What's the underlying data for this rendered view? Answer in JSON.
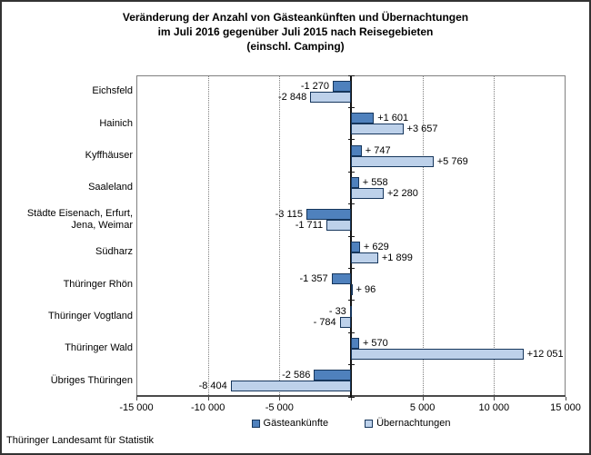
{
  "title": {
    "line1": "Veränderung der Anzahl von Gästeankünften und Übernachtungen",
    "line2": "im Juli 2016 gegenüber Juli 2015 nach Reisegebieten",
    "line3": "(einschl. Camping)"
  },
  "footer": "Thüringer Landesamt für Statistik",
  "legend": [
    {
      "label": "Gästeankünfte",
      "color": "#4f81bd"
    },
    {
      "label": "Übernachtungen",
      "color": "#bdd1ea"
    }
  ],
  "colors": {
    "bar_dark": "#4f81bd",
    "bar_light": "#bdd1ea",
    "bar_border": "#16365c",
    "gridline": "#7f7f7f",
    "plot_border": "#808080",
    "axis_line": "#4a4a4a",
    "zero_axis": "#111111",
    "text": "#000000"
  },
  "chart_data": {
    "type": "bar",
    "orientation": "horizontal",
    "title": "Veränderung der Anzahl von Gästeankünften und Übernachtungen im Juli 2016 gegenüber Juli 2015 nach Reisegebieten (einschl. Camping)",
    "categories": [
      "Eichsfeld",
      "Hainich",
      "Kyffhäuser",
      "Saaleland",
      "Städte Eisenach, Erfurt, Jena, Weimar",
      "Südharz",
      "Thüringer Rhön",
      "Thüringer Vogtland",
      "Thüringer Wald",
      "Übriges Thüringen"
    ],
    "series": [
      {
        "name": "Gästeankünfte",
        "color": "#4f81bd",
        "values": [
          -1270,
          1601,
          747,
          558,
          -3115,
          629,
          -1357,
          -33,
          570,
          -2586
        ],
        "labels": [
          "-1 270",
          "+1 601",
          "+ 747",
          "+ 558",
          "-3 115",
          "+ 629",
          "-1 357",
          "- 33",
          "+ 570",
          "-2 586"
        ]
      },
      {
        "name": "Übernachtungen",
        "color": "#bdd1ea",
        "values": [
          -2848,
          3657,
          5769,
          2280,
          -1711,
          1899,
          96,
          -784,
          12051,
          -8404
        ],
        "labels": [
          "-2 848",
          "+3 657",
          "+5 769",
          "+2 280",
          "-1 711",
          "+1 899",
          "+ 96",
          "- 784",
          "+12 051",
          "-8 404"
        ]
      }
    ],
    "xlim": [
      -15000,
      15000
    ],
    "x_ticks": [
      {
        "value": -15000,
        "label": "-15 000"
      },
      {
        "value": -10000,
        "label": "-10 000"
      },
      {
        "value": -5000,
        "label": "-5 000"
      },
      {
        "value": 0,
        "label": ""
      },
      {
        "value": 5000,
        "label": "5 000"
      },
      {
        "value": 10000,
        "label": "10 000"
      },
      {
        "value": 15000,
        "label": "15 000"
      }
    ],
    "grid": "vertical dotted gridlines at ±5 000 and ±10 000",
    "legend_position": "bottom"
  }
}
